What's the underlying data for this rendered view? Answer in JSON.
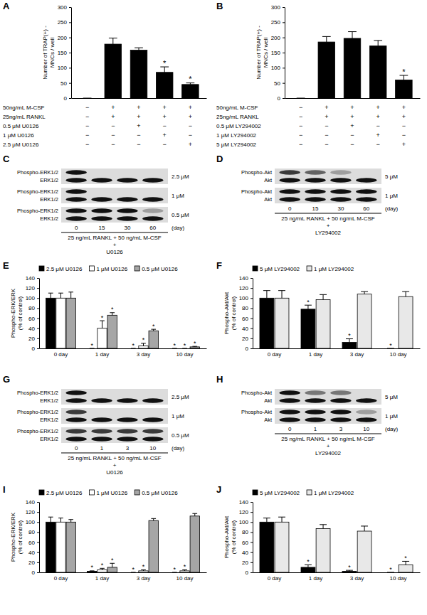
{
  "chart_data": [
    {
      "title": "A",
      "type": "bar",
      "y_label": [
        "Number of TRAP(+) -",
        "MNCs / well"
      ],
      "ylim": [
        0,
        300
      ],
      "yticks": [
        0,
        50,
        100,
        150,
        200,
        250,
        300
      ],
      "values": [
        0,
        178,
        158,
        85,
        45
      ],
      "errors": [
        0,
        20,
        8,
        18,
        5
      ],
      "color": "#000000",
      "annotations": [
        {
          "index": 3,
          "text": "*"
        },
        {
          "index": 4,
          "text": "*"
        }
      ],
      "treatments": [
        {
          "label": "50ng/mL M-CSF",
          "marks": [
            "−",
            "+",
            "+",
            "+",
            "+"
          ]
        },
        {
          "label": "25ng/mL RANKL",
          "marks": [
            "−",
            "+",
            "+",
            "+",
            "+"
          ]
        },
        {
          "label": "0.5 μM U0126",
          "marks": [
            "−",
            "−",
            "+",
            "−",
            "−"
          ]
        },
        {
          "label": "1 μM U0126",
          "marks": [
            "−",
            "−",
            "−",
            "+",
            "−"
          ]
        },
        {
          "label": "2.5 μM U0126",
          "marks": [
            "−",
            "−",
            "−",
            "−",
            "+"
          ]
        }
      ]
    },
    {
      "title": "B",
      "type": "bar",
      "y_label": [
        "Number of TRAP(+) -",
        "MNCs / well"
      ],
      "ylim": [
        0,
        300
      ],
      "yticks": [
        0,
        50,
        100,
        150,
        200,
        250,
        300
      ],
      "values": [
        0,
        185,
        197,
        172,
        60
      ],
      "errors": [
        0,
        18,
        22,
        18,
        15
      ],
      "color": "#000000",
      "annotations": [
        {
          "index": 4,
          "text": "*"
        }
      ],
      "treatments": [
        {
          "label": "50ng/mL M-CSF",
          "marks": [
            "−",
            "+",
            "+",
            "+",
            "+"
          ]
        },
        {
          "label": "25ng/mL RANKL",
          "marks": [
            "−",
            "+",
            "+",
            "+",
            "+"
          ]
        },
        {
          "label": "0.5 μM LY294002",
          "marks": [
            "−",
            "−",
            "+",
            "−",
            "−"
          ]
        },
        {
          "label": "1 μM LY294002",
          "marks": [
            "−",
            "−",
            "−",
            "+",
            "−"
          ]
        },
        {
          "label": "5 μM LY294002",
          "marks": [
            "−",
            "−",
            "−",
            "−",
            "+"
          ]
        }
      ]
    },
    {
      "title": "C",
      "type": "blot",
      "categories": [
        "0",
        "15",
        "30",
        "60"
      ],
      "x_label": "(day)",
      "caption": [
        "25 ng/mL RANKL + 50 ng/mL M-CSF",
        "+",
        "U0126"
      ],
      "groups": [
        {
          "label": "2.5 μM",
          "rows": [
            {
              "label": "Phospho-ERK1/2",
              "intensity": [
                1,
                0,
                0,
                0
              ]
            },
            {
              "label": "ERK1/2",
              "intensity": [
                1,
                1,
                1,
                1
              ]
            }
          ]
        },
        {
          "label": "1 μM",
          "rows": [
            {
              "label": "Phospho-ERK1/2",
              "intensity": [
                1,
                0,
                0,
                0
              ]
            },
            {
              "label": "ERK1/2",
              "intensity": [
                1,
                1,
                1,
                1
              ]
            }
          ]
        },
        {
          "label": "0.5 μM",
          "rows": [
            {
              "label": "Phospho-ERK1/2",
              "intensity": [
                1,
                1,
                1,
                0.3
              ]
            },
            {
              "label": "ERK1/2",
              "intensity": [
                1,
                1,
                1,
                1
              ]
            }
          ]
        }
      ]
    },
    {
      "title": "D",
      "type": "blot",
      "categories": [
        "0",
        "15",
        "30",
        "60"
      ],
      "x_label": "(day)",
      "caption": [
        "25 ng/mL RANKL + 50 ng/mL M-CSF",
        "+",
        "LY294002"
      ],
      "groups": [
        {
          "label": "5 μM",
          "rows": [
            {
              "label": "Phospho-Akt",
              "intensity": [
                0.8,
                0.6,
                0.3,
                0
              ]
            },
            {
              "label": "Akt",
              "intensity": [
                1,
                1,
                1,
                1
              ]
            }
          ]
        },
        {
          "label": "1 μM",
          "rows": [
            {
              "label": "Phospho-Akt",
              "intensity": [
                1,
                1,
                1,
                1
              ]
            },
            {
              "label": "Akt",
              "intensity": [
                1,
                1,
                1,
                1
              ]
            }
          ]
        }
      ]
    },
    {
      "title": "E",
      "type": "bar",
      "y_label": [
        "Phospho-ERK/ERK",
        "(% of control)"
      ],
      "ylim": [
        0,
        140
      ],
      "yticks": [
        0,
        20,
        40,
        60,
        80,
        100,
        120,
        140
      ],
      "categories": [
        "0 day",
        "1 day",
        "3 day",
        "10 day"
      ],
      "legend": "top",
      "series": [
        {
          "name": "2.5 μM U0126",
          "color": "#000000",
          "values": [
            100,
            0,
            0,
            0
          ],
          "errors": [
            10,
            0,
            0,
            0
          ]
        },
        {
          "name": "1 μM U0126",
          "color": "#ffffff",
          "values": [
            100,
            40,
            5,
            0
          ],
          "errors": [
            10,
            15,
            5,
            0
          ]
        },
        {
          "name": "0.5 μM U0126",
          "color": "#a6a6a6",
          "values": [
            100,
            66,
            35,
            3
          ],
          "errors": [
            12,
            5,
            3,
            1
          ]
        }
      ],
      "annotations": [
        {
          "series": 0,
          "index": 1,
          "text": "*"
        },
        {
          "series": 1,
          "index": 1,
          "text": "*"
        },
        {
          "series": 2,
          "index": 1,
          "text": "*"
        },
        {
          "series": 0,
          "index": 2,
          "text": "*"
        },
        {
          "series": 1,
          "index": 2,
          "text": "*"
        },
        {
          "series": 2,
          "index": 2,
          "text": "*"
        },
        {
          "series": 0,
          "index": 3,
          "text": "*"
        },
        {
          "series": 1,
          "index": 3,
          "text": "*"
        },
        {
          "series": 2,
          "index": 3,
          "text": "*"
        }
      ]
    },
    {
      "title": "F",
      "type": "bar",
      "y_label": [
        "Phospho-Akt/Akt",
        "(% of control)"
      ],
      "ylim": [
        0,
        140
      ],
      "yticks": [
        0,
        20,
        40,
        60,
        80,
        100,
        120,
        140
      ],
      "categories": [
        "0 day",
        "1 day",
        "3 day",
        "10 day"
      ],
      "legend": "top",
      "series": [
        {
          "name": "5 μM LY294002",
          "color": "#000000",
          "values": [
            100,
            78,
            12,
            0
          ],
          "errors": [
            15,
            8,
            7,
            0
          ]
        },
        {
          "name": "1 μM LY294002",
          "color": "#e8e8e8",
          "values": [
            100,
            97,
            108,
            103
          ],
          "errors": [
            15,
            10,
            5,
            10
          ]
        }
      ],
      "annotations": [
        {
          "series": 0,
          "index": 1,
          "text": "*"
        },
        {
          "series": 0,
          "index": 2,
          "text": "*"
        },
        {
          "series": 0,
          "index": 3,
          "text": "*"
        }
      ]
    },
    {
      "title": "G",
      "type": "blot",
      "categories": [
        "0",
        "1",
        "3",
        "10"
      ],
      "x_label": "(day)",
      "caption": [
        "25 ng/mL RANKL + 50 ng/mL M-CSF",
        "+",
        "U0126"
      ],
      "groups": [
        {
          "label": "2.5 μM",
          "rows": [
            {
              "label": "Phospho-ERK1/2",
              "intensity": [
                1,
                0,
                0,
                0
              ]
            },
            {
              "label": "ERK1/2",
              "intensity": [
                1,
                1,
                1,
                1
              ]
            }
          ]
        },
        {
          "label": "1 μM",
          "rows": [
            {
              "label": "Phospho-ERK1/2",
              "intensity": [
                0.8,
                0,
                0,
                0
              ]
            },
            {
              "label": "ERK1/2",
              "intensity": [
                1,
                1,
                1,
                1
              ]
            }
          ]
        },
        {
          "label": "0.5 μM",
          "rows": [
            {
              "label": "Phospho-ERK1/2",
              "intensity": [
                0.8,
                0.8,
                0.8,
                0.8
              ]
            },
            {
              "label": "ERK1/2",
              "intensity": [
                1,
                1,
                1,
                1
              ]
            }
          ]
        }
      ]
    },
    {
      "title": "H",
      "type": "blot",
      "categories": [
        "0",
        "1",
        "3",
        "10"
      ],
      "x_label": "(day)",
      "caption": [
        "25 ng/mL RANKL + 50 ng/mL M-CSF",
        "+",
        "LY294002"
      ],
      "groups": [
        {
          "label": "5 μM",
          "rows": [
            {
              "label": "Phospho-Akt",
              "intensity": [
                1,
                0.5,
                0.5,
                0
              ]
            },
            {
              "label": "Akt",
              "intensity": [
                1,
                1,
                1,
                1
              ]
            }
          ]
        },
        {
          "label": "1 μM",
          "rows": [
            {
              "label": "Phospho-Akt",
              "intensity": [
                1,
                1,
                1,
                0.3
              ]
            },
            {
              "label": "Akt",
              "intensity": [
                1,
                1,
                1,
                1
              ]
            }
          ]
        }
      ]
    },
    {
      "title": "I",
      "type": "bar",
      "y_label": [
        "Phospho-ERK/ERK",
        "(% of control)"
      ],
      "ylim": [
        0,
        140
      ],
      "yticks": [
        0,
        20,
        40,
        60,
        80,
        100,
        120,
        140
      ],
      "categories": [
        "0 day",
        "1 day",
        "3 day",
        "10 day"
      ],
      "legend": "top",
      "series": [
        {
          "name": "2.5 μM U0126",
          "color": "#000000",
          "values": [
            100,
            2,
            0,
            0
          ],
          "errors": [
            10,
            1,
            0,
            0
          ]
        },
        {
          "name": "1 μM U0126",
          "color": "#ffffff",
          "values": [
            100,
            5,
            3,
            3
          ],
          "errors": [
            8,
            3,
            2,
            2
          ]
        },
        {
          "name": "0.5 μM U0126",
          "color": "#a6a6a6",
          "values": [
            100,
            10,
            103,
            112
          ],
          "errors": [
            5,
            8,
            4,
            5
          ]
        }
      ],
      "annotations": [
        {
          "series": 0,
          "index": 1,
          "text": "*"
        },
        {
          "series": 1,
          "index": 1,
          "text": "*"
        },
        {
          "series": 2,
          "index": 1,
          "text": "*"
        },
        {
          "series": 0,
          "index": 2,
          "text": "*"
        },
        {
          "series": 1,
          "index": 2,
          "text": "*"
        },
        {
          "series": 0,
          "index": 3,
          "text": "*"
        },
        {
          "series": 1,
          "index": 3,
          "text": "*"
        }
      ]
    },
    {
      "title": "J",
      "type": "bar",
      "y_label": [
        "Phospho-Akt/Akt",
        "(% of control)"
      ],
      "ylim": [
        0,
        140
      ],
      "yticks": [
        0,
        20,
        40,
        60,
        80,
        100,
        120,
        140
      ],
      "categories": [
        "0 day",
        "1 day",
        "3 day",
        "10 day"
      ],
      "legend": "top",
      "series": [
        {
          "name": "5 μM LY294002",
          "color": "#000000",
          "values": [
            100,
            10,
            2,
            0
          ],
          "errors": [
            8,
            5,
            2,
            0
          ]
        },
        {
          "name": "1 μM LY294002",
          "color": "#e8e8e8",
          "values": [
            100,
            87,
            82,
            15
          ],
          "errors": [
            10,
            8,
            10,
            7
          ]
        }
      ],
      "annotations": [
        {
          "series": 0,
          "index": 1,
          "text": "*"
        },
        {
          "series": 0,
          "index": 2,
          "text": "*"
        },
        {
          "series": 0,
          "index": 3,
          "text": "*"
        },
        {
          "series": 1,
          "index": 3,
          "text": "*"
        }
      ]
    }
  ]
}
